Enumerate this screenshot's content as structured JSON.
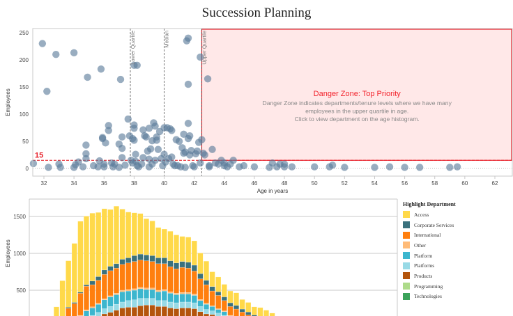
{
  "title": "Succession Planning",
  "chart_data": [
    {
      "type": "scatter",
      "xlabel": "Age in years",
      "ylabel": "Employees",
      "xlim": [
        31.25,
        62.8
      ],
      "ylim": [
        -10,
        255
      ],
      "xticks": [
        32,
        34,
        36,
        38,
        40,
        42,
        44,
        46,
        48,
        50,
        52,
        54,
        56,
        58,
        60,
        62
      ],
      "yticks": [
        0,
        50,
        100,
        150,
        200,
        250
      ],
      "reference_lines": [
        {
          "label": "Lower Quartile",
          "x": 37.75
        },
        {
          "label": "Median",
          "x": 40.0
        },
        {
          "label": "Upper Quartile",
          "x": 42.5
        }
      ],
      "threshold": {
        "label": "15",
        "y": 15
      },
      "danger_zone": {
        "x_from": 42.5,
        "x_to": 62.8,
        "y_from": 15,
        "y_to": 250,
        "title": "Danger Zone: Top Priority",
        "lines": [
          "Danger Zone indicates departments/tenure levels where we have many",
          "employees in the upper quartile in age.",
          "Click to view department on the age histogram."
        ]
      },
      "points": [
        [
          31.3,
          9
        ],
        [
          31.9,
          230
        ],
        [
          32.2,
          142
        ],
        [
          32.3,
          2
        ],
        [
          32.8,
          210
        ],
        [
          33.0,
          8
        ],
        [
          33.1,
          2
        ],
        [
          34.0,
          2
        ],
        [
          34.0,
          213
        ],
        [
          34.1,
          7
        ],
        [
          34.3,
          12
        ],
        [
          34.6,
          3
        ],
        [
          34.8,
          43
        ],
        [
          34.8,
          27
        ],
        [
          34.8,
          18
        ],
        [
          34.9,
          168
        ],
        [
          35.3,
          5
        ],
        [
          35.6,
          3
        ],
        [
          35.7,
          14
        ],
        [
          35.8,
          183
        ],
        [
          35.9,
          57
        ],
        [
          35.9,
          55
        ],
        [
          36.0,
          3
        ],
        [
          36.0,
          8
        ],
        [
          36.1,
          47
        ],
        [
          36.3,
          79
        ],
        [
          36.3,
          70
        ],
        [
          36.5,
          10
        ],
        [
          36.6,
          3
        ],
        [
          36.7,
          8
        ],
        [
          37.0,
          45
        ],
        [
          37.0,
          2
        ],
        [
          37.1,
          164
        ],
        [
          37.2,
          20
        ],
        [
          37.2,
          37
        ],
        [
          37.2,
          58
        ],
        [
          37.4,
          6
        ],
        [
          37.6,
          91
        ],
        [
          37.7,
          60
        ],
        [
          37.8,
          15
        ],
        [
          37.9,
          55
        ],
        [
          37.9,
          10
        ],
        [
          38.0,
          190
        ],
        [
          38.0,
          80
        ],
        [
          38.0,
          74
        ],
        [
          38.0,
          52
        ],
        [
          38.1,
          26
        ],
        [
          38.1,
          13
        ],
        [
          38.2,
          190
        ],
        [
          38.2,
          5
        ],
        [
          38.3,
          3
        ],
        [
          38.5,
          8
        ],
        [
          38.6,
          20
        ],
        [
          38.6,
          71
        ],
        [
          38.7,
          60
        ],
        [
          38.8,
          58
        ],
        [
          38.9,
          32
        ],
        [
          39.0,
          17
        ],
        [
          39.0,
          74
        ],
        [
          39.0,
          3
        ],
        [
          39.1,
          36
        ],
        [
          39.2,
          51
        ],
        [
          39.2,
          8
        ],
        [
          39.3,
          84
        ],
        [
          39.4,
          15
        ],
        [
          39.4,
          78
        ],
        [
          39.5,
          52
        ],
        [
          39.5,
          58
        ],
        [
          39.6,
          35
        ],
        [
          39.7,
          68
        ],
        [
          39.8,
          18
        ],
        [
          39.9,
          5
        ],
        [
          40.0,
          75
        ],
        [
          40.0,
          26
        ],
        [
          40.1,
          12
        ],
        [
          40.2,
          75
        ],
        [
          40.3,
          18
        ],
        [
          40.4,
          73
        ],
        [
          40.5,
          70
        ],
        [
          40.5,
          21
        ],
        [
          40.6,
          8
        ],
        [
          40.7,
          5
        ],
        [
          40.8,
          53
        ],
        [
          40.9,
          5
        ],
        [
          41.0,
          50
        ],
        [
          41.1,
          3
        ],
        [
          41.2,
          38
        ],
        [
          41.3,
          28
        ],
        [
          41.3,
          63
        ],
        [
          41.4,
          2
        ],
        [
          41.4,
          30
        ],
        [
          41.5,
          235
        ],
        [
          41.6,
          240
        ],
        [
          41.6,
          155
        ],
        [
          41.6,
          83
        ],
        [
          41.6,
          55
        ],
        [
          41.7,
          25
        ],
        [
          41.7,
          60
        ],
        [
          41.8,
          33
        ],
        [
          41.9,
          5
        ],
        [
          42.0,
          3
        ],
        [
          42.1,
          27
        ],
        [
          42.2,
          32
        ],
        [
          42.3,
          48
        ],
        [
          42.4,
          205
        ],
        [
          42.4,
          10
        ],
        [
          42.5,
          53
        ],
        [
          42.6,
          28
        ],
        [
          42.7,
          25
        ],
        [
          42.9,
          165
        ],
        [
          43.0,
          5
        ],
        [
          43.0,
          3
        ],
        [
          43.2,
          35
        ],
        [
          43.4,
          10
        ],
        [
          43.6,
          8
        ],
        [
          43.8,
          15
        ],
        [
          44.0,
          5
        ],
        [
          44.0,
          10
        ],
        [
          44.2,
          3
        ],
        [
          44.4,
          8
        ],
        [
          44.6,
          15
        ],
        [
          45.0,
          3
        ],
        [
          45.3,
          5
        ],
        [
          46.0,
          3
        ],
        [
          47.0,
          2
        ],
        [
          47.2,
          10
        ],
        [
          47.5,
          3
        ],
        [
          47.7,
          8
        ],
        [
          48.0,
          3
        ],
        [
          48.0,
          8
        ],
        [
          48.5,
          3
        ],
        [
          50.0,
          3
        ],
        [
          51.0,
          3
        ],
        [
          51.2,
          6
        ],
        [
          52.0,
          2
        ],
        [
          54.0,
          2
        ],
        [
          55.0,
          3
        ],
        [
          56.0,
          2
        ],
        [
          57.0,
          2
        ],
        [
          59.0,
          2
        ],
        [
          59.5,
          3
        ]
      ]
    },
    {
      "type": "bar",
      "stacked": true,
      "ylabel": "Employees",
      "yticks": [
        500,
        1000,
        1500
      ],
      "ylim": [
        0,
        1750
      ],
      "legend": {
        "title": "Highlight Department",
        "placement": "right",
        "items": [
          {
            "name": "Access",
            "color": "#FFD94A"
          },
          {
            "name": "Corporate Services",
            "color": "#3A717D"
          },
          {
            "name": "International",
            "color": "#FF7F0E"
          },
          {
            "name": "Other",
            "color": "#FFBB78"
          },
          {
            "name": "Platform",
            "color": "#3CB6CE"
          },
          {
            "name": "Platforms",
            "color": "#98DAE6"
          },
          {
            "name": "Products",
            "color": "#B4550D"
          },
          {
            "name": "Programming",
            "color": "#ADDB8A"
          },
          {
            "name": "Technologies",
            "color": "#3BA35A"
          }
        ]
      },
      "series": [
        {
          "name": "Products",
          "values": [
            0,
            0,
            0,
            0,
            10,
            20,
            60,
            90,
            110,
            140,
            180,
            200,
            230,
            260,
            270,
            270,
            290,
            300,
            300,
            280,
            280,
            260,
            250,
            260,
            260,
            250,
            210,
            180,
            170,
            150,
            120,
            90,
            80,
            60,
            60,
            40,
            30,
            20,
            20,
            10,
            10,
            0,
            0
          ]
        },
        {
          "name": "Platforms",
          "values": [
            0,
            0,
            0,
            0,
            10,
            20,
            30,
            50,
            50,
            60,
            70,
            80,
            80,
            80,
            90,
            100,
            100,
            90,
            90,
            80,
            80,
            80,
            80,
            80,
            80,
            80,
            70,
            60,
            50,
            40,
            40,
            30,
            30,
            30,
            20,
            20,
            10,
            10,
            10,
            0,
            0,
            0,
            0
          ]
        },
        {
          "name": "Platform",
          "values": [
            0,
            0,
            0,
            0,
            20,
            30,
            60,
            80,
            100,
            110,
            120,
            130,
            130,
            140,
            130,
            130,
            130,
            120,
            120,
            120,
            130,
            120,
            110,
            110,
            110,
            100,
            80,
            70,
            60,
            50,
            50,
            30,
            20,
            20,
            10,
            10,
            10,
            0,
            0,
            0,
            0,
            0,
            0
          ]
        },
        {
          "name": "Other",
          "values": [
            0,
            0,
            0,
            0,
            5,
            10,
            10,
            15,
            15,
            15,
            15,
            15,
            20,
            20,
            20,
            20,
            20,
            20,
            20,
            20,
            20,
            20,
            20,
            20,
            20,
            20,
            15,
            15,
            10,
            10,
            10,
            10,
            5,
            5,
            5,
            5,
            5,
            0,
            0,
            0,
            0,
            0,
            0
          ]
        },
        {
          "name": "International",
          "values": [
            0,
            0,
            20,
            40,
            210,
            240,
            300,
            320,
            300,
            310,
            330,
            340,
            340,
            350,
            360,
            370,
            370,
            370,
            360,
            360,
            350,
            340,
            330,
            340,
            330,
            310,
            280,
            250,
            200,
            180,
            140,
            120,
            110,
            90,
            70,
            50,
            40,
            30,
            20,
            10,
            0,
            0,
            0
          ]
        },
        {
          "name": "Corporate Services",
          "values": [
            0,
            0,
            5,
            10,
            15,
            15,
            15,
            20,
            50,
            50,
            60,
            60,
            60,
            70,
            70,
            80,
            80,
            80,
            80,
            80,
            80,
            80,
            80,
            80,
            80,
            80,
            70,
            60,
            60,
            50,
            50,
            50,
            50,
            40,
            40,
            40,
            40,
            30,
            30,
            20,
            10,
            0,
            0
          ]
        },
        {
          "name": "Access",
          "values": [
            0,
            0,
            250,
            580,
            630,
            800,
            960,
            930,
            920,
            870,
            830,
            770,
            780,
            680,
            620,
            580,
            550,
            490,
            470,
            410,
            390,
            400,
            380,
            340,
            340,
            330,
            280,
            260,
            200,
            200,
            170,
            160,
            170,
            130,
            130,
            110,
            130,
            140,
            110,
            100,
            90,
            50,
            0
          ]
        }
      ]
    }
  ],
  "legend_title": "Highlight Department",
  "legend_items": [
    {
      "name": "Access",
      "color": "#FFD94A"
    },
    {
      "name": "Corporate Services",
      "color": "#3A717D"
    },
    {
      "name": "International",
      "color": "#FF7F0E"
    },
    {
      "name": "Other",
      "color": "#FFBB78"
    },
    {
      "name": "Platform",
      "color": "#3CB6CE"
    },
    {
      "name": "Platforms",
      "color": "#98DAE6"
    },
    {
      "name": "Products",
      "color": "#B4550D"
    },
    {
      "name": "Programming",
      "color": "#ADDB8A"
    },
    {
      "name": "Technologies",
      "color": "#3BA35A"
    }
  ],
  "colors": {
    "point": "#5A7A9A",
    "danger": "#E8202A",
    "danger_fill": "#FFE8E8",
    "refline": "#555555",
    "grid": "#C8C8C8"
  }
}
